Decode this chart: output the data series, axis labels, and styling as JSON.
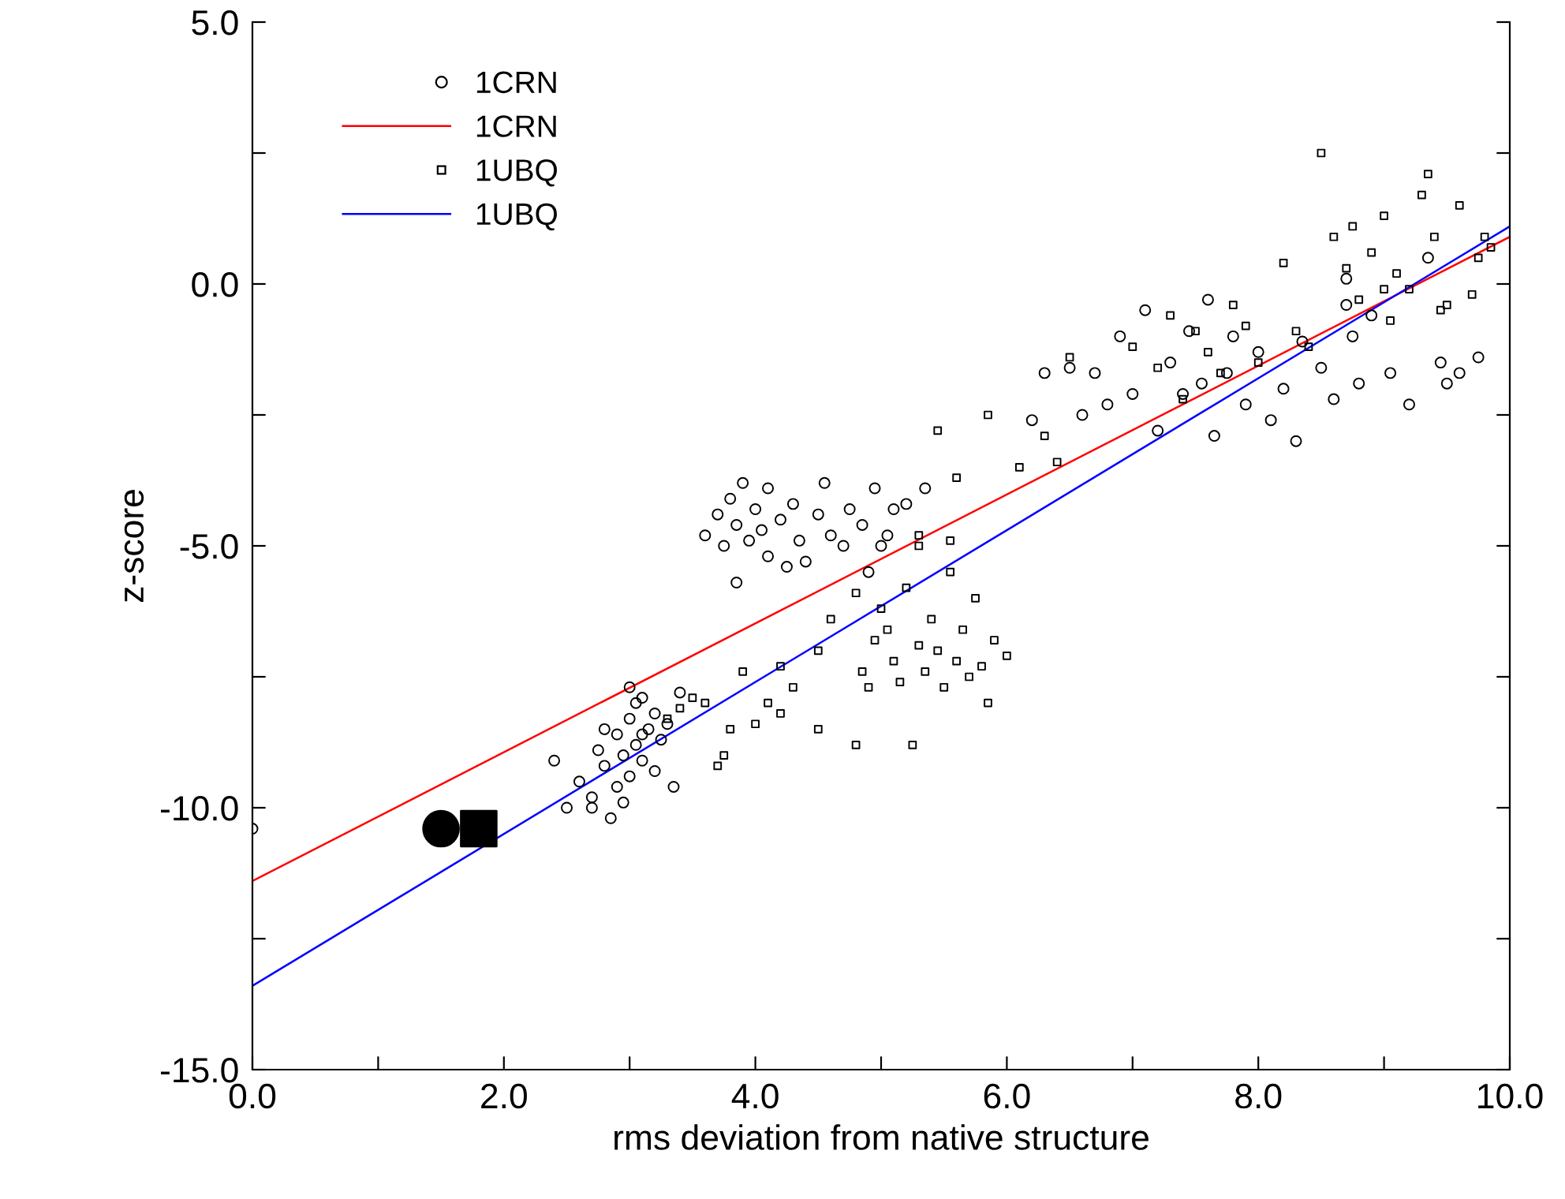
{
  "chart_data": {
    "type": "scatter",
    "xlabel": "rms deviation from native structure",
    "ylabel": "z-score",
    "xlim": [
      0,
      10
    ],
    "ylim": [
      -15,
      5
    ],
    "xticks": [
      {
        "value": 0,
        "label": "0.0"
      },
      {
        "value": 1,
        "label": null
      },
      {
        "value": 2,
        "label": "2.0"
      },
      {
        "value": 3,
        "label": null
      },
      {
        "value": 4,
        "label": "4.0"
      },
      {
        "value": 5,
        "label": null
      },
      {
        "value": 6,
        "label": "6.0"
      },
      {
        "value": 7,
        "label": null
      },
      {
        "value": 8,
        "label": "8.0"
      },
      {
        "value": 9,
        "label": null
      },
      {
        "value": 10,
        "label": "10.0"
      }
    ],
    "yticks": [
      {
        "value": -15,
        "label": "-15.0"
      },
      {
        "value": -12.5,
        "label": null
      },
      {
        "value": -10,
        "label": "-10.0"
      },
      {
        "value": -7.5,
        "label": null
      },
      {
        "value": -5,
        "label": "-5.0"
      },
      {
        "value": -2.5,
        "label": null
      },
      {
        "value": 0,
        "label": "0.0"
      },
      {
        "value": 2.5,
        "label": null
      },
      {
        "value": 5,
        "label": "5.0"
      }
    ],
    "grid": false,
    "legend": "top left",
    "series": [
      {
        "name": "1CRN",
        "type": "scatter",
        "marker": "circle",
        "color": "#000000",
        "x": [
          0,
          2.4,
          2.5,
          2.6,
          2.7,
          2.75,
          2.8,
          2.85,
          2.9,
          2.9,
          2.95,
          3.0,
          3.0,
          3.05,
          3.05,
          3.1,
          3.1,
          3.15,
          3.2,
          3.2,
          3.25,
          3.0,
          3.4,
          3.35,
          2.7,
          2.95,
          3.1,
          2.8,
          3.3,
          3.6,
          3.7,
          3.75,
          3.8,
          3.85,
          3.9,
          3.95,
          4.0,
          4.05,
          4.1,
          4.1,
          4.2,
          4.3,
          4.35,
          4.4,
          4.5,
          4.55,
          4.6,
          4.7,
          4.75,
          4.85,
          4.9,
          4.95,
          5.05,
          5.1,
          5.2,
          5.35,
          5.0,
          3.85,
          4.25,
          6.2,
          6.3,
          6.5,
          6.6,
          6.7,
          6.8,
          6.9,
          7.0,
          7.1,
          7.2,
          7.3,
          7.4,
          7.45,
          7.55,
          7.6,
          7.65,
          7.75,
          7.8,
          7.9,
          8.0,
          8.1,
          8.2,
          8.3,
          8.35,
          8.5,
          8.6,
          8.7,
          8.75,
          8.8,
          8.9,
          9.05,
          9.2,
          9.35,
          9.45,
          9.5,
          9.6,
          9.75,
          8.7
        ],
        "values": [
          -10.4,
          -9.1,
          -10.0,
          -9.5,
          -9.8,
          -8.9,
          -9.2,
          -10.2,
          -9.6,
          -8.6,
          -9.0,
          -8.3,
          -9.4,
          -8.0,
          -8.8,
          -7.9,
          -9.1,
          -8.5,
          -8.2,
          -9.3,
          -8.7,
          -7.7,
          -7.8,
          -9.6,
          -10.0,
          -9.9,
          -8.6,
          -8.5,
          -8.4,
          -4.8,
          -4.4,
          -5.0,
          -4.1,
          -4.6,
          -3.8,
          -4.9,
          -4.3,
          -4.7,
          -5.2,
          -3.9,
          -4.5,
          -4.2,
          -4.9,
          -5.3,
          -4.4,
          -3.8,
          -4.8,
          -5.0,
          -4.3,
          -4.6,
          -5.5,
          -3.9,
          -4.8,
          -4.3,
          -4.2,
          -3.9,
          -5.0,
          -5.7,
          -5.4,
          -2.6,
          -1.7,
          -1.6,
          -2.5,
          -1.7,
          -2.3,
          -1.0,
          -2.1,
          -0.5,
          -2.8,
          -1.5,
          -2.1,
          -0.9,
          -1.9,
          -0.3,
          -2.9,
          -1.7,
          -1.0,
          -2.3,
          -1.3,
          -2.6,
          -2.0,
          -3.0,
          -1.1,
          -1.6,
          -2.2,
          -0.4,
          -1.0,
          -1.9,
          -0.6,
          -1.7,
          -2.3,
          0.5,
          -1.5,
          -1.9,
          -1.7,
          -1.4,
          0.1
        ]
      },
      {
        "name": "1CRN",
        "type": "line",
        "color": "#ff0000",
        "x": [
          0,
          10
        ],
        "values": [
          -11.4,
          0.9
        ]
      },
      {
        "name": "1UBQ",
        "type": "scatter",
        "marker": "square",
        "color": "#000000",
        "x": [
          3.3,
          3.4,
          3.5,
          3.6,
          3.7,
          3.75,
          3.8,
          3.9,
          4.0,
          4.1,
          4.2,
          4.3,
          4.5,
          4.6,
          4.8,
          4.5,
          4.2,
          4.85,
          4.9,
          4.95,
          5.0,
          5.1,
          5.15,
          5.2,
          5.25,
          5.3,
          5.35,
          5.4,
          5.45,
          5.5,
          5.55,
          5.6,
          5.65,
          5.7,
          5.75,
          5.8,
          5.85,
          5.9,
          6.0,
          5.3,
          5.55,
          5.6,
          5.45,
          5.3,
          4.8,
          5.05,
          5.85,
          6.1,
          6.3,
          6.4,
          6.5,
          7.0,
          7.2,
          7.3,
          7.4,
          7.5,
          7.6,
          7.7,
          7.8,
          7.9,
          8.0,
          8.2,
          8.3,
          8.4,
          8.5,
          8.6,
          8.7,
          8.75,
          8.8,
          8.9,
          9.0,
          9.05,
          9.1,
          9.2,
          9.3,
          9.35,
          9.4,
          9.5,
          9.6,
          9.7,
          9.75,
          9.8,
          9.85,
          9.45,
          9.0
        ],
        "values": [
          -8.3,
          -8.1,
          -7.9,
          -8.0,
          -9.2,
          -9.0,
          -8.5,
          -7.4,
          -8.4,
          -8.0,
          -8.2,
          -7.7,
          -8.5,
          -6.4,
          -8.8,
          -7.0,
          -7.3,
          -7.4,
          -7.7,
          -6.8,
          -6.2,
          -7.2,
          -7.6,
          -5.8,
          -8.8,
          -6.9,
          -7.4,
          -6.4,
          -7.0,
          -7.7,
          -5.5,
          -7.2,
          -6.6,
          -7.5,
          -6.0,
          -7.3,
          -8.0,
          -6.8,
          -7.1,
          -4.8,
          -4.9,
          -3.7,
          -2.8,
          -5.0,
          -5.9,
          -6.6,
          -2.5,
          -3.5,
          -2.9,
          -3.4,
          -1.4,
          -1.2,
          -1.6,
          -0.6,
          -2.2,
          -0.9,
          -1.3,
          -1.7,
          -0.4,
          -0.8,
          -1.5,
          0.4,
          -0.9,
          -1.2,
          2.5,
          0.9,
          0.3,
          1.1,
          -0.3,
          0.6,
          1.3,
          -0.7,
          0.2,
          -0.1,
          1.7,
          2.1,
          0.9,
          -0.4,
          1.5,
          -0.2,
          0.5,
          0.9,
          0.7,
          -0.5,
          -0.1
        ]
      },
      {
        "name": "1UBQ",
        "type": "line",
        "color": "#0000ff",
        "x": [
          0,
          10
        ],
        "values": [
          -13.4,
          1.1
        ]
      },
      {
        "type": "scatter",
        "marker": "circle",
        "color": "#000000",
        "x": [
          1.5
        ],
        "values": [
          -10.4
        ]
      },
      {
        "type": "scatter",
        "marker": "square",
        "color": "#000000",
        "x": [
          1.8
        ],
        "values": [
          -10.4
        ]
      }
    ]
  }
}
